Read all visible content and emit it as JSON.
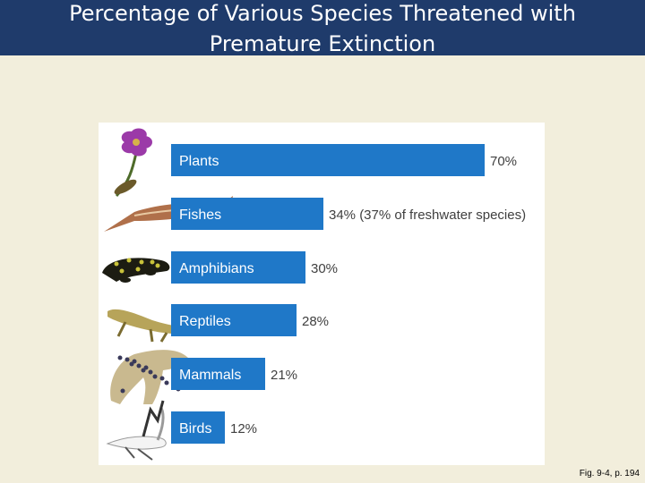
{
  "title": "Percentage of Various Species Threatened with\nPremature Extinction",
  "caption": "Fig. 9-4, p. 194",
  "colors": {
    "title_bar": "#1f3b6b",
    "title_text": "#ffffff",
    "background": "#f2eedc",
    "bar": "#1f78c8",
    "bar_label": "#ffffff",
    "value_label": "#404040"
  },
  "chart_data": {
    "type": "bar",
    "orientation": "horizontal",
    "categories": [
      "Plants",
      "Fishes",
      "Amphibians",
      "Reptiles",
      "Mammals",
      "Birds"
    ],
    "values": [
      70,
      34,
      30,
      28,
      21,
      12
    ],
    "value_labels": [
      "70%",
      "34% (37% of freshwater species)",
      "30%",
      "28%",
      "21%",
      "12%"
    ],
    "icons": [
      "flower-icon",
      "sturgeon-icon",
      "salamander-icon",
      "lizard-icon",
      "leopard-icon",
      "crane-icon"
    ],
    "title": "",
    "xlabel": "",
    "ylabel": "",
    "xlim": [
      0,
      70
    ],
    "grid": false,
    "legend": false
  }
}
